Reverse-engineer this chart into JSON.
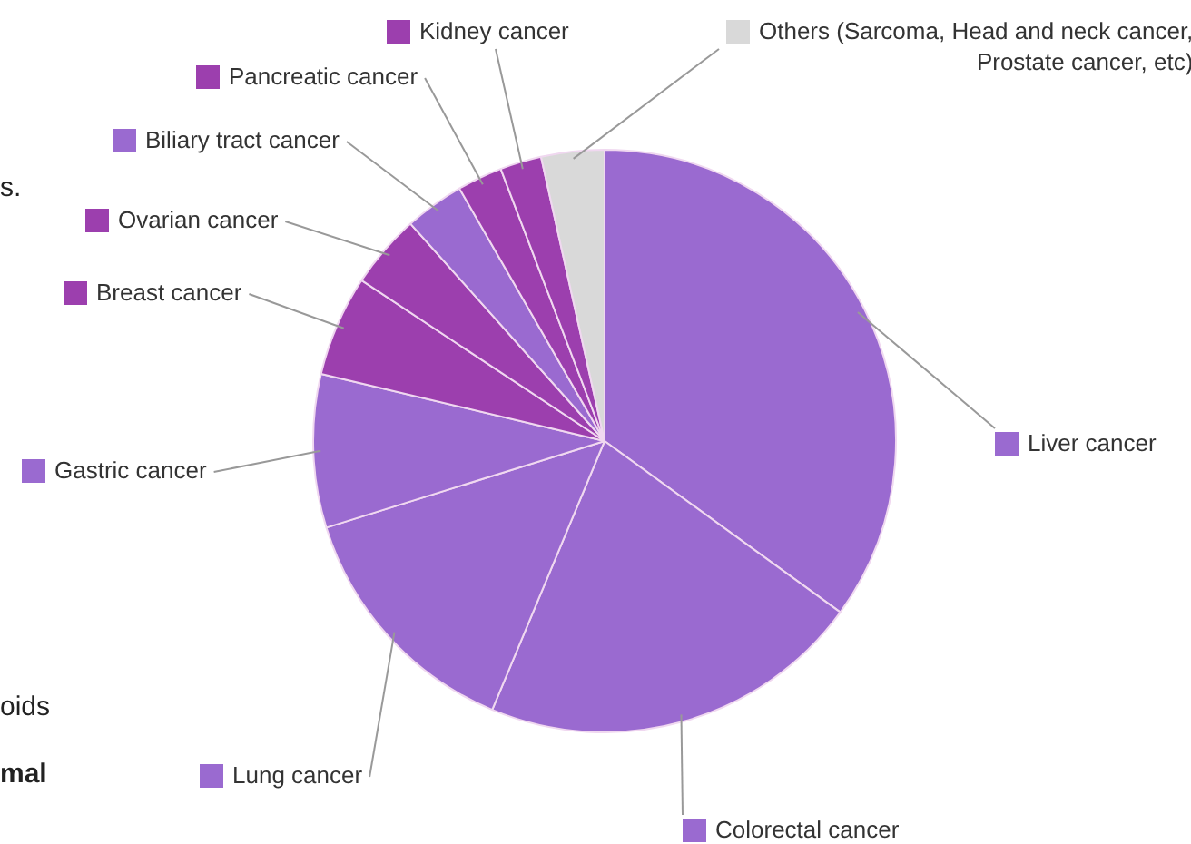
{
  "chart_data": {
    "type": "pie",
    "categories": [
      "Liver cancer",
      "Colorectal cancer",
      "Lung cancer",
      "Gastric cancer",
      "Breast cancer",
      "Ovarian cancer",
      "Biliary tract cancer",
      "Pancreatic cancer",
      "Kidney cancer",
      "Others (Sarcoma, Head and neck cancer, Prostate cancer, etc)"
    ],
    "values": [
      35.0,
      21.3,
      13.9,
      8.5,
      5.6,
      4.1,
      3.3,
      2.5,
      2.3,
      3.5
    ],
    "colors": [
      "#9a6ad0",
      "#9a6ad0",
      "#9a6ad0",
      "#9a6ad0",
      "#9c3fae",
      "#9c3fae",
      "#9a6ad0",
      "#9c3fae",
      "#9c3fae",
      "#d9d9d9"
    ],
    "legend": "right",
    "annotations": [
      "s.",
      "oids",
      "mal"
    ]
  }
}
